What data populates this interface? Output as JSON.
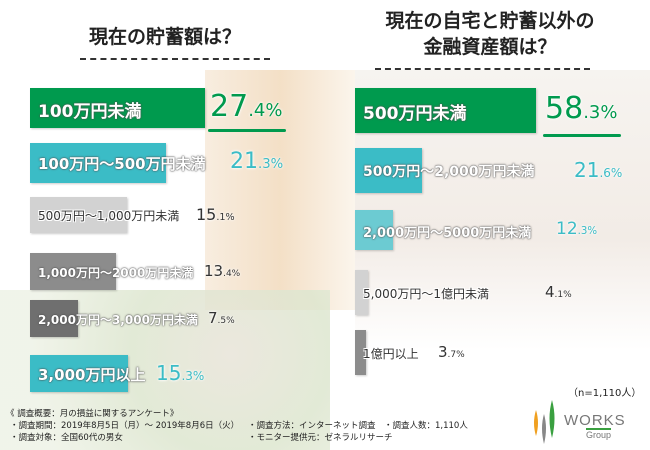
{
  "chart_data": [
    {
      "type": "bar",
      "orientation": "horizontal",
      "title": "現在の貯蓄額は？",
      "categories": [
        "100万円未満",
        "100万円〜500万円未満",
        "500万円〜1,000万円未満",
        "1,000万円〜2000万円未満",
        "2,000万円〜3,000万円未満",
        "3,000万円以上"
      ],
      "values": [
        27.4,
        21.3,
        15.1,
        13.4,
        7.5,
        15.3
      ],
      "colors": [
        "#009a4e",
        "#3bbcc6",
        "#d2d2d2",
        "#8c8c8c",
        "#6f6f6f",
        "#3bbcc6"
      ],
      "value_labels": [
        "27.4%",
        "21.3%",
        "15.1%",
        "13.4%",
        "7.5%",
        "15.3%"
      ]
    },
    {
      "type": "bar",
      "orientation": "horizontal",
      "title": "現在の自宅と貯蓄以外の金融資産額は？",
      "categories": [
        "500万円未満",
        "500万円〜2,000万円未満",
        "2,000万円〜5000万円未満",
        "5,000万円〜1億円未満",
        "1億円以上"
      ],
      "values": [
        58.3,
        21.6,
        12.3,
        4.1,
        3.7
      ],
      "colors": [
        "#009a4e",
        "#3bbcc6",
        "#6ccbd2",
        "#d2d2d2",
        "#8c8c8c"
      ],
      "value_labels": [
        "58.3%",
        "21.6%",
        "12.3%",
        "4.1%",
        "3.7%"
      ]
    }
  ],
  "left_title": "現在の貯蓄額は？",
  "right_title_1": "現在の自宅と貯蓄以外の",
  "right_title_2": "金融資産額は？",
  "n_note": "（n=1,110人）",
  "survey": {
    "heading": "《 調査概要：月の損益に関するアンケート》",
    "period": "・調査期間：2019年8月5日（月）〜 2019年8月6日（火）",
    "target": "・調査対象：全国60代の男女",
    "method": "・調査方法：インターネット調査",
    "count": "・調査人数：1,110人",
    "provider": "・モニター提供元：ゼネラルリサーチ"
  },
  "logo": {
    "text": "WORKS",
    "sub": "Group"
  }
}
